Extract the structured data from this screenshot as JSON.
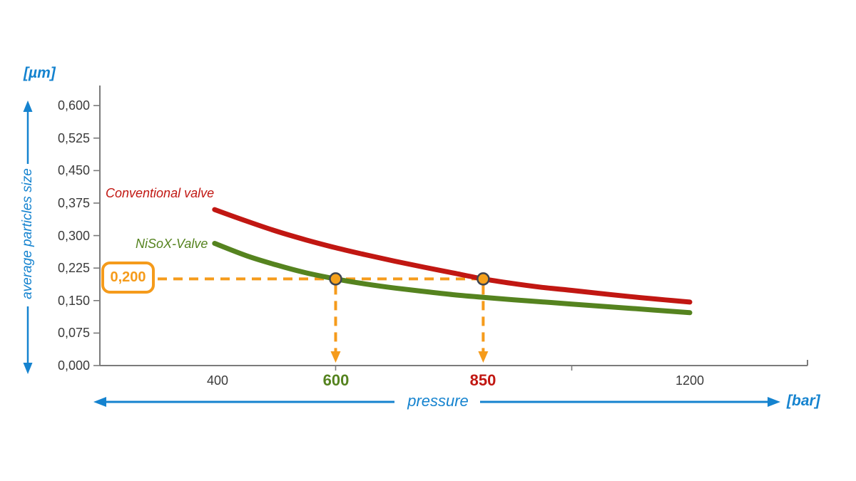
{
  "units": {
    "y": "[µm]",
    "x": "[bar]"
  },
  "axis_titles": {
    "y": "average particles size",
    "x": "pressure"
  },
  "legend": {
    "conventional_label": "Conventional valve",
    "nisox_label": "NiSoX-Valve"
  },
  "annotation": {
    "value": "0,200"
  },
  "colors": {
    "blue": "#1583cf",
    "red": "#c11712",
    "green": "#55831f",
    "orange": "#f59b1b",
    "dot_fill": "#f5a11c",
    "dot_stroke": "#3d4450",
    "axis": "#7b7b7b",
    "tick_text": "#3b3b3b"
  },
  "chart_data": {
    "type": "line",
    "title": "",
    "xlabel": "pressure",
    "x_unit": "bar",
    "ylabel": "average particles size",
    "y_unit": "µm",
    "xlim": [
      200,
      1400
    ],
    "ylim": [
      0,
      0.65
    ],
    "grid": false,
    "legend_position": "inline-labels",
    "y_tick_values": [
      0.6,
      0.525,
      0.45,
      0.375,
      0.3,
      0.225,
      0.15,
      0.075,
      0.0
    ],
    "y_tick_labels": [
      "0,600",
      "0,525",
      "0,450",
      "0,375",
      "0,300",
      "0,225",
      "0,150",
      "0,075",
      "0,000"
    ],
    "x_tick_marks": [
      600,
      1000
    ],
    "x_labels": [
      {
        "text": "400",
        "value": 400,
        "style": "plain"
      },
      {
        "text": "600",
        "value": 600,
        "style": "green"
      },
      {
        "text": "850",
        "value": 850,
        "style": "red"
      },
      {
        "text": "1200",
        "value": 1200,
        "style": "plain"
      }
    ],
    "series": [
      {
        "name": "Conventional valve",
        "color": "#c11712",
        "points": [
          [
            395,
            0.36
          ],
          [
            450,
            0.333
          ],
          [
            500,
            0.31
          ],
          [
            550,
            0.29
          ],
          [
            600,
            0.272
          ],
          [
            650,
            0.256
          ],
          [
            700,
            0.241
          ],
          [
            750,
            0.227
          ],
          [
            800,
            0.2135
          ],
          [
            850,
            0.2
          ],
          [
            900,
            0.1895
          ],
          [
            950,
            0.1805
          ],
          [
            1000,
            0.1735
          ],
          [
            1100,
            0.159
          ],
          [
            1200,
            0.1465
          ]
        ]
      },
      {
        "name": "NiSoX-Valve",
        "color": "#55831f",
        "points": [
          [
            395,
            0.282
          ],
          [
            450,
            0.253
          ],
          [
            500,
            0.232
          ],
          [
            550,
            0.214
          ],
          [
            600,
            0.2
          ],
          [
            650,
            0.1885
          ],
          [
            700,
            0.179
          ],
          [
            750,
            0.171
          ],
          [
            800,
            0.1635
          ],
          [
            850,
            0.1575
          ],
          [
            900,
            0.152
          ],
          [
            1000,
            0.142
          ],
          [
            1100,
            0.132
          ],
          [
            1200,
            0.122
          ]
        ]
      }
    ],
    "highlights": [
      {
        "series": "NiSoX-Valve",
        "pressure": 600,
        "size": 0.2
      },
      {
        "series": "Conventional valve",
        "pressure": 850,
        "size": 0.2
      }
    ],
    "highlight_size_label": "0,200"
  }
}
